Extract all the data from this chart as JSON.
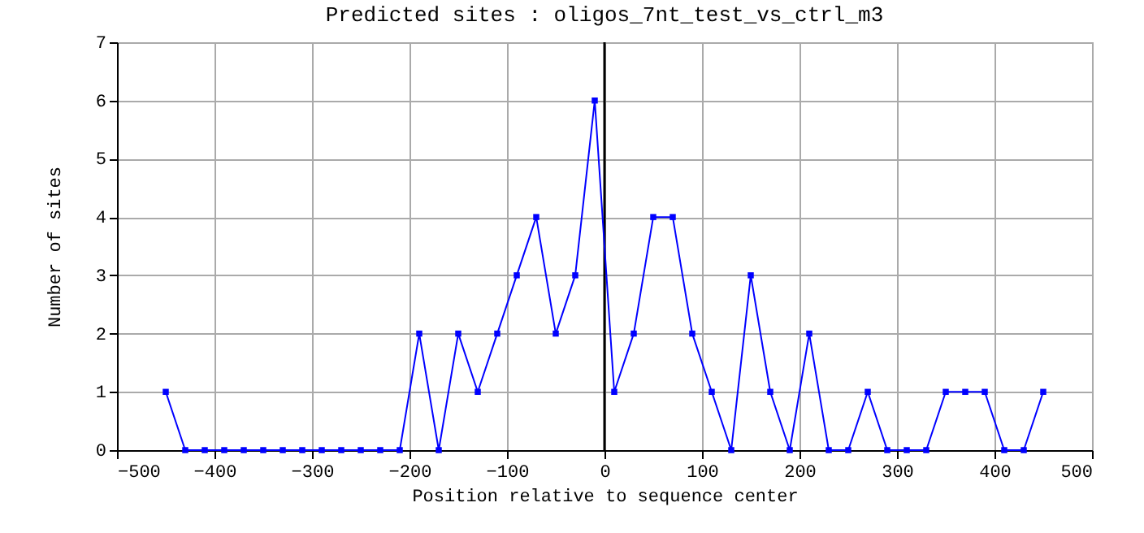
{
  "chart_data": {
    "type": "line",
    "title": "Predicted sites : oligos_7nt_test_vs_ctrl_m3",
    "xlabel": "Position relative to sequence center",
    "ylabel": "Number of sites",
    "x": [
      -450,
      -430,
      -410,
      -390,
      -370,
      -350,
      -330,
      -310,
      -290,
      -270,
      -250,
      -230,
      -210,
      -190,
      -170,
      -150,
      -130,
      -110,
      -90,
      -70,
      -50,
      -30,
      -10,
      10,
      30,
      50,
      70,
      90,
      110,
      130,
      150,
      170,
      190,
      210,
      230,
      250,
      270,
      290,
      310,
      330,
      350,
      370,
      390,
      410,
      430,
      450
    ],
    "series": [
      {
        "color": "#0000ff",
        "values": [
          1,
          0,
          0,
          0,
          0,
          0,
          0,
          0,
          0,
          0,
          0,
          0,
          0,
          2,
          0,
          2,
          1,
          2,
          3,
          4,
          2,
          3,
          6,
          1,
          2,
          4,
          4,
          2,
          1,
          0,
          3,
          1,
          0,
          2,
          0,
          0,
          1,
          0,
          0,
          0,
          1,
          1,
          1,
          0,
          0,
          1
        ]
      }
    ],
    "xlim": [
      -500,
      500
    ],
    "xticks": [
      -500,
      -400,
      -300,
      -200,
      -100,
      0,
      100,
      200,
      300,
      400,
      500
    ],
    "ylim": [
      0,
      7
    ],
    "yticks": [
      0,
      1,
      2,
      3,
      4,
      5,
      6,
      7
    ],
    "ref_lines": [
      {
        "axis": "x",
        "value": 0,
        "color": "#000000"
      }
    ],
    "grid": true,
    "marker": "square",
    "line_style": "solid"
  }
}
